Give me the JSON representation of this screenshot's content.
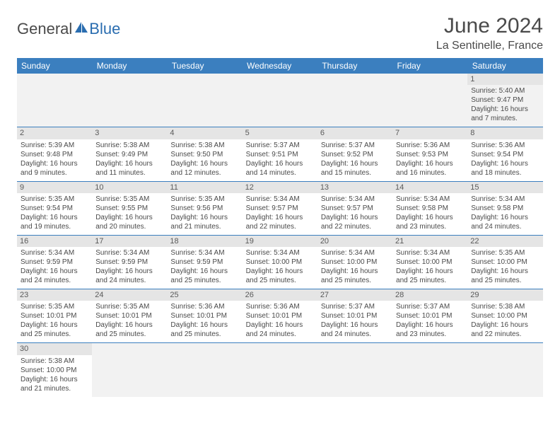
{
  "logo": {
    "general": "General",
    "blue": "Blue"
  },
  "title": "June 2024",
  "location": "La Sentinelle, France",
  "headers": [
    "Sunday",
    "Monday",
    "Tuesday",
    "Wednesday",
    "Thursday",
    "Friday",
    "Saturday"
  ],
  "colors": {
    "header_bg": "#3b7fbf",
    "daynum_bg": "#e5e5e5",
    "blank_bg": "#f2f2f2",
    "border": "#3b7fbf",
    "logo_blue": "#2a6db0"
  },
  "grid": [
    [
      null,
      null,
      null,
      null,
      null,
      null,
      {
        "n": "1",
        "sr": "5:40 AM",
        "ss": "9:47 PM",
        "dl": "16 hours and 7 minutes."
      }
    ],
    [
      {
        "n": "2",
        "sr": "5:39 AM",
        "ss": "9:48 PM",
        "dl": "16 hours and 9 minutes."
      },
      {
        "n": "3",
        "sr": "5:38 AM",
        "ss": "9:49 PM",
        "dl": "16 hours and 11 minutes."
      },
      {
        "n": "4",
        "sr": "5:38 AM",
        "ss": "9:50 PM",
        "dl": "16 hours and 12 minutes."
      },
      {
        "n": "5",
        "sr": "5:37 AM",
        "ss": "9:51 PM",
        "dl": "16 hours and 14 minutes."
      },
      {
        "n": "6",
        "sr": "5:37 AM",
        "ss": "9:52 PM",
        "dl": "16 hours and 15 minutes."
      },
      {
        "n": "7",
        "sr": "5:36 AM",
        "ss": "9:53 PM",
        "dl": "16 hours and 16 minutes."
      },
      {
        "n": "8",
        "sr": "5:36 AM",
        "ss": "9:54 PM",
        "dl": "16 hours and 18 minutes."
      }
    ],
    [
      {
        "n": "9",
        "sr": "5:35 AM",
        "ss": "9:54 PM",
        "dl": "16 hours and 19 minutes."
      },
      {
        "n": "10",
        "sr": "5:35 AM",
        "ss": "9:55 PM",
        "dl": "16 hours and 20 minutes."
      },
      {
        "n": "11",
        "sr": "5:35 AM",
        "ss": "9:56 PM",
        "dl": "16 hours and 21 minutes."
      },
      {
        "n": "12",
        "sr": "5:34 AM",
        "ss": "9:57 PM",
        "dl": "16 hours and 22 minutes."
      },
      {
        "n": "13",
        "sr": "5:34 AM",
        "ss": "9:57 PM",
        "dl": "16 hours and 22 minutes."
      },
      {
        "n": "14",
        "sr": "5:34 AM",
        "ss": "9:58 PM",
        "dl": "16 hours and 23 minutes."
      },
      {
        "n": "15",
        "sr": "5:34 AM",
        "ss": "9:58 PM",
        "dl": "16 hours and 24 minutes."
      }
    ],
    [
      {
        "n": "16",
        "sr": "5:34 AM",
        "ss": "9:59 PM",
        "dl": "16 hours and 24 minutes."
      },
      {
        "n": "17",
        "sr": "5:34 AM",
        "ss": "9:59 PM",
        "dl": "16 hours and 24 minutes."
      },
      {
        "n": "18",
        "sr": "5:34 AM",
        "ss": "9:59 PM",
        "dl": "16 hours and 25 minutes."
      },
      {
        "n": "19",
        "sr": "5:34 AM",
        "ss": "10:00 PM",
        "dl": "16 hours and 25 minutes."
      },
      {
        "n": "20",
        "sr": "5:34 AM",
        "ss": "10:00 PM",
        "dl": "16 hours and 25 minutes."
      },
      {
        "n": "21",
        "sr": "5:34 AM",
        "ss": "10:00 PM",
        "dl": "16 hours and 25 minutes."
      },
      {
        "n": "22",
        "sr": "5:35 AM",
        "ss": "10:00 PM",
        "dl": "16 hours and 25 minutes."
      }
    ],
    [
      {
        "n": "23",
        "sr": "5:35 AM",
        "ss": "10:01 PM",
        "dl": "16 hours and 25 minutes."
      },
      {
        "n": "24",
        "sr": "5:35 AM",
        "ss": "10:01 PM",
        "dl": "16 hours and 25 minutes."
      },
      {
        "n": "25",
        "sr": "5:36 AM",
        "ss": "10:01 PM",
        "dl": "16 hours and 25 minutes."
      },
      {
        "n": "26",
        "sr": "5:36 AM",
        "ss": "10:01 PM",
        "dl": "16 hours and 24 minutes."
      },
      {
        "n": "27",
        "sr": "5:37 AM",
        "ss": "10:01 PM",
        "dl": "16 hours and 24 minutes."
      },
      {
        "n": "28",
        "sr": "5:37 AM",
        "ss": "10:01 PM",
        "dl": "16 hours and 23 minutes."
      },
      {
        "n": "29",
        "sr": "5:38 AM",
        "ss": "10:00 PM",
        "dl": "16 hours and 22 minutes."
      }
    ],
    [
      {
        "n": "30",
        "sr": "5:38 AM",
        "ss": "10:00 PM",
        "dl": "16 hours and 21 minutes."
      },
      null,
      null,
      null,
      null,
      null,
      null
    ]
  ],
  "labels": {
    "sunrise": "Sunrise:",
    "sunset": "Sunset:",
    "daylight": "Daylight:"
  }
}
